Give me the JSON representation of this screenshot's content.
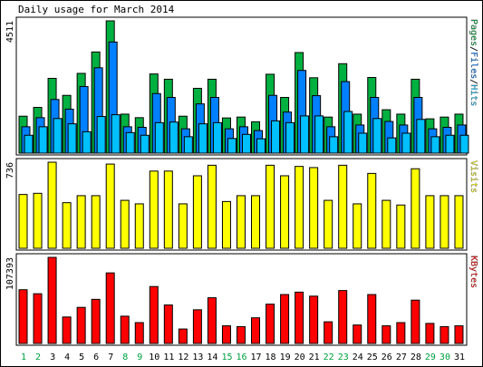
{
  "chart_data": {
    "type": "bar",
    "title": "Daily usage for March 2014",
    "categories": [
      "1",
      "2",
      "3",
      "4",
      "5",
      "6",
      "7",
      "8",
      "9",
      "10",
      "11",
      "12",
      "13",
      "14",
      "15",
      "16",
      "17",
      "18",
      "19",
      "20",
      "21",
      "22",
      "23",
      "24",
      "25",
      "26",
      "27",
      "28",
      "29",
      "30",
      "31"
    ],
    "weekend_days": [
      "1",
      "2",
      "8",
      "9",
      "15",
      "16",
      "22",
      "23",
      "29",
      "30"
    ],
    "colors": {
      "pages": "#00B040",
      "files": "#0080FF",
      "hits": "#00C0FF",
      "visits": "#FFFF00",
      "kbytes": "#FF0000",
      "weekday_label": "#000000",
      "weekend_label": "#00A040",
      "frame": "#000000",
      "panel_bg": "#ffffff"
    },
    "panels": [
      {
        "key": "hits",
        "max_label": "4511",
        "ylim": [
          0,
          4511
        ],
        "legend": [
          {
            "text": "Pages",
            "color": "#00B040"
          },
          {
            "text": "/",
            "color": "#000000"
          },
          {
            "text": "Files",
            "color": "#0080FF"
          },
          {
            "text": "/",
            "color": "#000000"
          },
          {
            "text": "Hits",
            "color": "#00C0FF"
          }
        ],
        "series": [
          {
            "name": "Pages",
            "color": "#00B040",
            "values": [
              1260,
              1560,
              2550,
              1970,
              2720,
              3450,
              4511,
              1330,
              1210,
              2700,
              2520,
              1260,
              2210,
              2520,
              1200,
              1230,
              1070,
              2690,
              1900,
              3430,
              2570,
              1230,
              3050,
              1330,
              2580,
              1480,
              1330,
              2520,
              1170,
              1230,
              1330
            ]
          },
          {
            "name": "Files",
            "color": "#0080FF",
            "values": [
              900,
              1210,
              1830,
              1500,
              2270,
              2910,
              3790,
              900,
              880,
              2030,
              1900,
              830,
              1680,
              1900,
              830,
              900,
              770,
              1970,
              1400,
              2820,
              1960,
              900,
              2440,
              960,
              1900,
              1080,
              960,
              1900,
              830,
              880,
              960
            ]
          },
          {
            "name": "Hits",
            "color": "#00C0FF",
            "values": [
              610,
              900,
              1180,
              1000,
              730,
              1250,
              1310,
              700,
              610,
              1040,
              1060,
              560,
              1000,
              1040,
              500,
              640,
              490,
              1100,
              1040,
              1270,
              1270,
              560,
              1420,
              680,
              1180,
              520,
              680,
              1150,
              560,
              610,
              610
            ]
          }
        ]
      },
      {
        "key": "visits",
        "max_label": "736",
        "ylim": [
          0,
          736
        ],
        "legend": [
          {
            "text": "Visits",
            "color": "#FFFF00"
          }
        ],
        "series": [
          {
            "name": "Visits",
            "color": "#FFFF00",
            "values": [
              460,
              470,
              736,
              390,
              450,
              450,
              720,
              410,
              380,
              660,
              660,
              380,
              620,
              710,
              400,
              450,
              450,
              710,
              620,
              700,
              690,
              410,
              710,
              380,
              640,
              410,
              370,
              680,
              450,
              450,
              450
            ]
          }
        ]
      },
      {
        "key": "kbytes",
        "max_label": "107393",
        "ylim": [
          0,
          107393
        ],
        "legend": [
          {
            "text": "KBytes",
            "color": "#FF0000"
          }
        ],
        "series": [
          {
            "name": "KBytes",
            "color": "#FF0000",
            "values": [
              67000,
              62000,
              107393,
              33000,
              45000,
              55000,
              88000,
              34000,
              26000,
              71000,
              48000,
              18000,
              42000,
              57000,
              22000,
              21000,
              32000,
              49000,
              61000,
              64000,
              59000,
              27000,
              66000,
              23000,
              61000,
              22000,
              26000,
              54000,
              25000,
              21000,
              22000
            ]
          }
        ]
      }
    ]
  }
}
